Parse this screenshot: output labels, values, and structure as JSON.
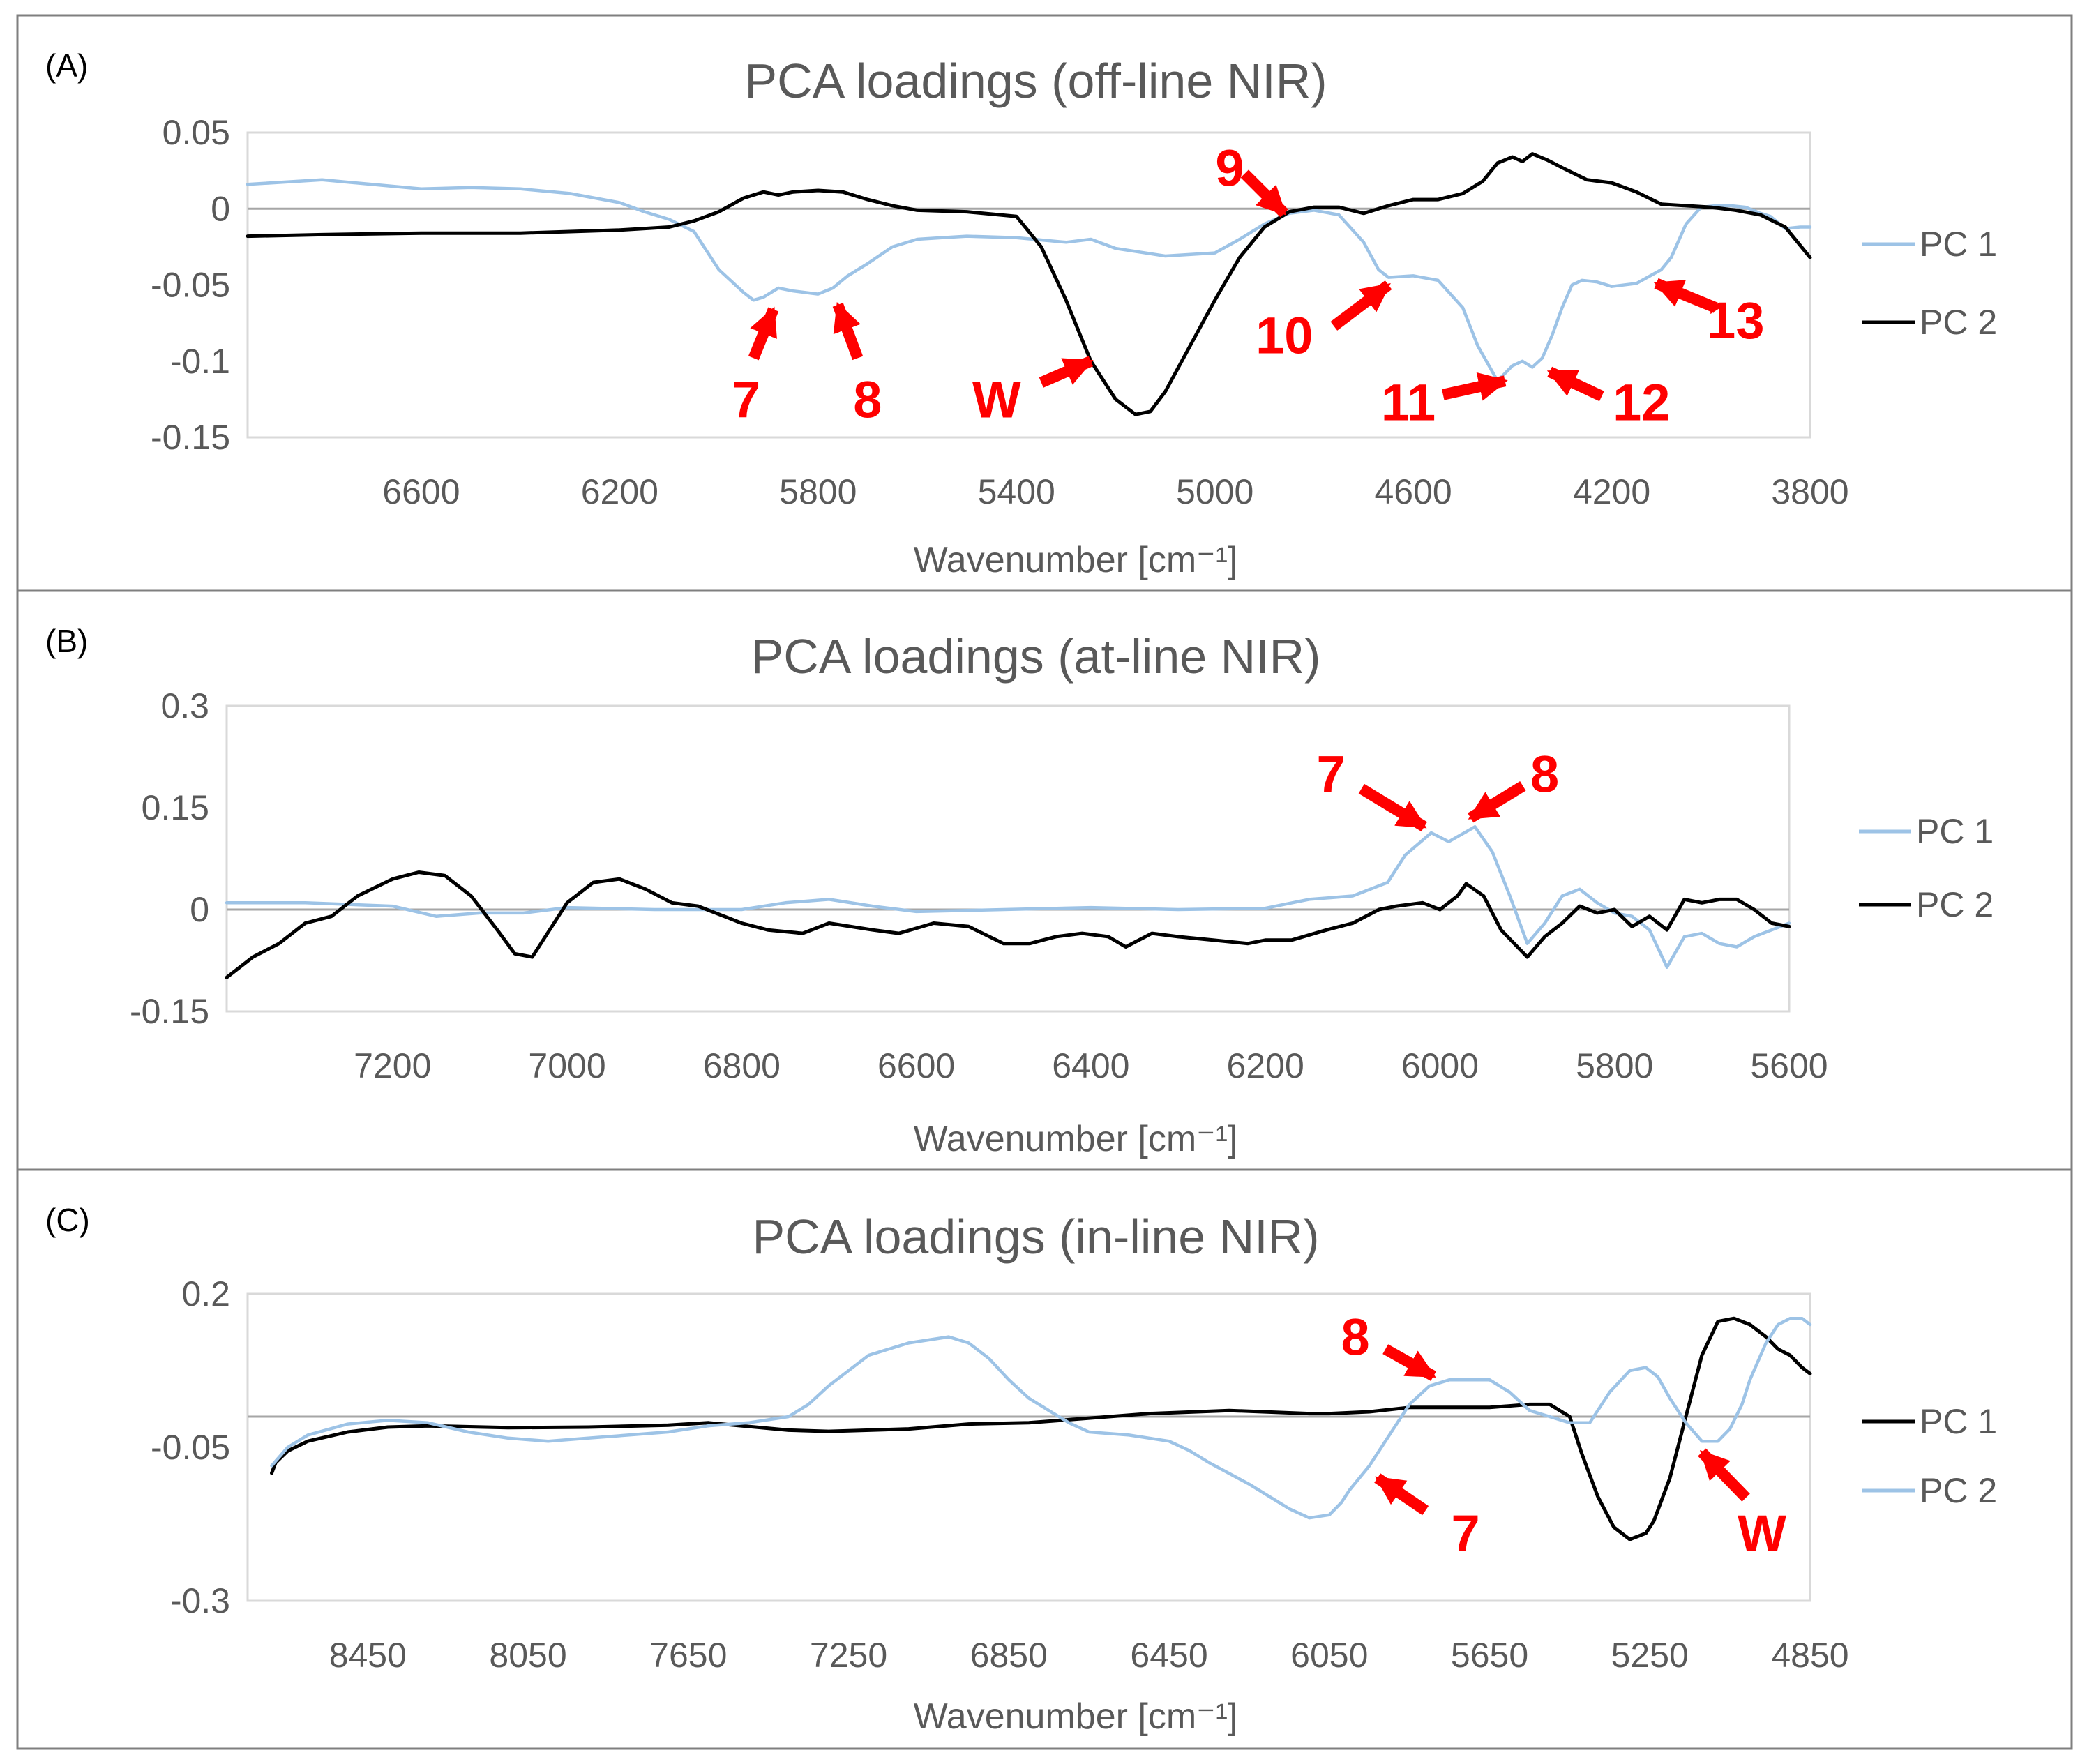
{
  "colors": {
    "pc_light": "#9dc3e6",
    "pc_dark": "#000000",
    "annotation": "#ff0000",
    "text": "#595959"
  },
  "chart_data": [
    {
      "panel_label": "(A)",
      "type": "line",
      "title": "PCA loadings (off-line NIR)",
      "xlabel": "Wavenumber [cm⁻¹]",
      "ylabel": "",
      "xlim": [
        6950,
        3800
      ],
      "x_reversed": true,
      "ylim": [
        -0.15,
        0.05
      ],
      "xticks": [
        6600,
        6200,
        5800,
        5400,
        5000,
        4600,
        4200,
        3800
      ],
      "xtick_labels": [
        "6600",
        "6200",
        "5800",
        "5400",
        "5000",
        "4600",
        "4200",
        "3800"
      ],
      "yticks": [
        0.05,
        0,
        -0.05,
        -0.1,
        -0.15
      ],
      "ytick_labels": [
        "0.05",
        "0",
        "-0.05",
        "-0.1",
        "-0.15"
      ],
      "legend": "right",
      "series": [
        {
          "name": "PC 1",
          "color": "#9dc3e6",
          "x": [
            6950,
            6800,
            6700,
            6600,
            6500,
            6400,
            6300,
            6200,
            6150,
            6100,
            6050,
            6000,
            5950,
            5930,
            5910,
            5880,
            5850,
            5800,
            5770,
            5740,
            5700,
            5650,
            5600,
            5550,
            5500,
            5400,
            5300,
            5250,
            5200,
            5100,
            5000,
            4950,
            4900,
            4850,
            4800,
            4750,
            4700,
            4670,
            4650,
            4600,
            4550,
            4500,
            4470,
            4430,
            4400,
            4380,
            4360,
            4340,
            4320,
            4300,
            4280,
            4260,
            4230,
            4200,
            4150,
            4100,
            4080,
            4050,
            4020,
            3990,
            3960,
            3930,
            3900,
            3880,
            3850,
            3820,
            3800
          ],
          "y": [
            0.016,
            0.019,
            0.016,
            0.013,
            0.014,
            0.013,
            0.01,
            0.004,
            -0.002,
            -0.007,
            -0.015,
            -0.04,
            -0.055,
            -0.06,
            -0.058,
            -0.052,
            -0.054,
            -0.056,
            -0.052,
            -0.044,
            -0.036,
            -0.025,
            -0.02,
            -0.019,
            -0.018,
            -0.019,
            -0.022,
            -0.02,
            -0.026,
            -0.031,
            -0.029,
            -0.02,
            -0.01,
            -0.003,
            -0.001,
            -0.004,
            -0.022,
            -0.04,
            -0.045,
            -0.044,
            -0.047,
            -0.065,
            -0.09,
            -0.113,
            -0.103,
            -0.1,
            -0.104,
            -0.098,
            -0.083,
            -0.065,
            -0.05,
            -0.047,
            -0.048,
            -0.051,
            -0.049,
            -0.04,
            -0.032,
            -0.01,
            0.001,
            0.002,
            0.002,
            0.001,
            -0.003,
            -0.005,
            -0.013,
            -0.012,
            -0.012
          ]
        },
        {
          "name": "PC 2",
          "color": "#000000",
          "x": [
            6950,
            6800,
            6600,
            6400,
            6200,
            6100,
            6050,
            6000,
            5950,
            5910,
            5880,
            5850,
            5800,
            5750,
            5700,
            5650,
            5600,
            5500,
            5400,
            5350,
            5300,
            5250,
            5200,
            5160,
            5130,
            5100,
            5050,
            5000,
            4950,
            4900,
            4850,
            4800,
            4750,
            4700,
            4650,
            4600,
            4550,
            4500,
            4460,
            4430,
            4400,
            4380,
            4360,
            4330,
            4300,
            4250,
            4200,
            4150,
            4100,
            4050,
            4000,
            3950,
            3900,
            3850,
            3800
          ],
          "y": [
            -0.018,
            -0.017,
            -0.016,
            -0.016,
            -0.014,
            -0.012,
            -0.008,
            -0.002,
            0.007,
            0.011,
            0.009,
            0.011,
            0.012,
            0.011,
            0.006,
            0.002,
            -0.001,
            -0.002,
            -0.005,
            -0.025,
            -0.06,
            -0.1,
            -0.125,
            -0.135,
            -0.133,
            -0.12,
            -0.09,
            -0.06,
            -0.032,
            -0.012,
            -0.002,
            0.001,
            0.001,
            -0.003,
            0.002,
            0.006,
            0.006,
            0.01,
            0.018,
            0.03,
            0.034,
            0.031,
            0.036,
            0.032,
            0.027,
            0.019,
            0.017,
            0.011,
            0.003,
            0.002,
            0.001,
            -0.001,
            -0.004,
            -0.012,
            -0.032
          ]
        }
      ],
      "annotations": [
        {
          "label": "7",
          "tip_x": 5890,
          "tip_y": -0.066,
          "text_x": 5945,
          "text_y": -0.125,
          "tail_x": 5930,
          "tail_y": -0.098
        },
        {
          "label": "8",
          "tip_x": 5760,
          "tip_y": -0.063,
          "text_x": 5700,
          "text_y": -0.125,
          "tail_x": 5720,
          "tail_y": -0.098
        },
        {
          "label": "W",
          "tip_x": 5250,
          "tip_y": -0.1,
          "text_x": 5440,
          "text_y": -0.125,
          "tail_x": 5350,
          "tail_y": -0.114
        },
        {
          "label": "9",
          "tip_x": 4860,
          "tip_y": -0.003,
          "text_x": 4970,
          "text_y": 0.027,
          "tail_x": 4940,
          "tail_y": 0.023
        },
        {
          "label": "10",
          "tip_x": 4650,
          "tip_y": -0.05,
          "text_x": 4860,
          "text_y": -0.083,
          "tail_x": 4760,
          "tail_y": -0.077
        },
        {
          "label": "11",
          "tip_x": 4415,
          "tip_y": -0.113,
          "text_x": 4610,
          "text_y": -0.127,
          "tail_x": 4540,
          "tail_y": -0.122
        },
        {
          "label": "12",
          "tip_x": 4325,
          "tip_y": -0.107,
          "text_x": 4140,
          "text_y": -0.127,
          "tail_x": 4220,
          "tail_y": -0.123
        },
        {
          "label": "13",
          "tip_x": 4110,
          "tip_y": -0.049,
          "text_x": 3950,
          "text_y": -0.073,
          "tail_x": 3990,
          "tail_y": -0.065
        }
      ]
    },
    {
      "panel_label": "(B)",
      "type": "line",
      "title": "PCA loadings (at-line NIR)",
      "xlabel": "Wavenumber [cm⁻¹]",
      "ylabel": "",
      "xlim": [
        7390,
        5600
      ],
      "x_reversed": true,
      "ylim": [
        -0.15,
        0.3
      ],
      "xticks": [
        7200,
        7000,
        6800,
        6600,
        6400,
        6200,
        6000,
        5800,
        5600
      ],
      "xtick_labels": [
        "7200",
        "7000",
        "6800",
        "6600",
        "6400",
        "6200",
        "6000",
        "5800",
        "5600"
      ],
      "yticks": [
        0.3,
        0.15,
        0,
        -0.15
      ],
      "ytick_labels": [
        "0.3",
        "0.15",
        "0",
        "-0.15"
      ],
      "legend": "right",
      "series": [
        {
          "name": "PC 1",
          "color": "#9dc3e6",
          "x": [
            7390,
            7300,
            7200,
            7150,
            7100,
            7050,
            7000,
            6900,
            6800,
            6750,
            6700,
            6650,
            6600,
            6500,
            6400,
            6300,
            6200,
            6150,
            6100,
            6060,
            6040,
            6010,
            5990,
            5960,
            5940,
            5920,
            5900,
            5880,
            5860,
            5840,
            5820,
            5800,
            5780,
            5760,
            5740,
            5720,
            5700,
            5680,
            5660,
            5640,
            5620,
            5600
          ],
          "y": [
            0.01,
            0.01,
            0.005,
            -0.01,
            -0.005,
            -0.005,
            0.003,
            0.0,
            0.0,
            0.01,
            0.015,
            0.005,
            -0.003,
            0.0,
            0.003,
            0.0,
            0.002,
            0.015,
            0.02,
            0.04,
            0.08,
            0.113,
            0.1,
            0.122,
            0.085,
            0.02,
            -0.05,
            -0.02,
            0.02,
            0.03,
            0.01,
            -0.005,
            -0.01,
            -0.03,
            -0.085,
            -0.04,
            -0.035,
            -0.05,
            -0.055,
            -0.04,
            -0.03,
            -0.02
          ]
        },
        {
          "name": "PC 2",
          "color": "#000000",
          "x": [
            7390,
            7360,
            7330,
            7300,
            7270,
            7240,
            7200,
            7170,
            7140,
            7110,
            7080,
            7060,
            7040,
            7020,
            7000,
            6970,
            6940,
            6910,
            6880,
            6850,
            6820,
            6800,
            6770,
            6730,
            6700,
            6650,
            6620,
            6580,
            6540,
            6500,
            6470,
            6440,
            6410,
            6380,
            6360,
            6330,
            6300,
            6260,
            6220,
            6200,
            6170,
            6130,
            6100,
            6070,
            6050,
            6020,
            6000,
            5980,
            5970,
            5950,
            5930,
            5900,
            5880,
            5860,
            5840,
            5820,
            5800,
            5780,
            5760,
            5740,
            5720,
            5700,
            5680,
            5660,
            5640,
            5620,
            5600
          ],
          "y": [
            -0.1,
            -0.07,
            -0.05,
            -0.02,
            -0.01,
            0.02,
            0.045,
            0.055,
            0.05,
            0.02,
            -0.03,
            -0.065,
            -0.07,
            -0.03,
            0.01,
            0.04,
            0.045,
            0.03,
            0.01,
            0.005,
            -0.01,
            -0.02,
            -0.03,
            -0.035,
            -0.02,
            -0.03,
            -0.035,
            -0.02,
            -0.025,
            -0.05,
            -0.05,
            -0.04,
            -0.035,
            -0.04,
            -0.055,
            -0.035,
            -0.04,
            -0.045,
            -0.05,
            -0.045,
            -0.045,
            -0.03,
            -0.02,
            0.0,
            0.005,
            0.01,
            0.0,
            0.02,
            0.038,
            0.02,
            -0.03,
            -0.07,
            -0.04,
            -0.02,
            0.005,
            -0.005,
            0.0,
            -0.025,
            -0.01,
            -0.03,
            0.015,
            0.01,
            0.015,
            0.015,
            0.0,
            -0.02,
            -0.025
          ]
        }
      ],
      "annotations": [
        {
          "label": "7",
          "tip_x": 6018,
          "tip_y": 0.122,
          "text_x": 6125,
          "text_y": 0.2,
          "tail_x": 6090,
          "tail_y": 0.178
        },
        {
          "label": "8",
          "tip_x": 5965,
          "tip_y": 0.135,
          "text_x": 5880,
          "text_y": 0.2,
          "tail_x": 5905,
          "tail_y": 0.182
        }
      ]
    },
    {
      "panel_label": "(C)",
      "type": "line",
      "title": "PCA loadings (in-line NIR)",
      "xlabel": "Wavenumber [cm⁻¹]",
      "ylabel": "",
      "xlim": [
        8750,
        4850
      ],
      "x_reversed": true,
      "ylim": [
        -0.3,
        0.2
      ],
      "xticks": [
        8450,
        8050,
        7650,
        7250,
        6850,
        6450,
        6050,
        5650,
        5250,
        4850
      ],
      "xtick_labels": [
        "8450",
        "8050",
        "7650",
        "7250",
        "6850",
        "6450",
        "6050",
        "5650",
        "5250",
        "4850"
      ],
      "yticks": [
        0.2,
        -0.05,
        -0.3
      ],
      "ytick_labels": [
        "0.2",
        "-0.05",
        "-0.3"
      ],
      "legend": "right",
      "series": [
        {
          "name": "PC 1",
          "color": "#000000",
          "x": [
            8690,
            8680,
            8650,
            8600,
            8500,
            8400,
            8300,
            8100,
            7900,
            7700,
            7600,
            7400,
            7300,
            7100,
            6950,
            6800,
            6700,
            6500,
            6300,
            6100,
            6050,
            5950,
            5850,
            5750,
            5650,
            5550,
            5500,
            5450,
            5420,
            5380,
            5340,
            5300,
            5260,
            5240,
            5200,
            5160,
            5120,
            5080,
            5040,
            5000,
            4960,
            4930,
            4900,
            4870,
            4850
          ],
          "y": [
            -0.092,
            -0.075,
            -0.056,
            -0.04,
            -0.025,
            -0.017,
            -0.015,
            -0.018,
            -0.017,
            -0.014,
            -0.01,
            -0.022,
            -0.024,
            -0.02,
            -0.012,
            -0.01,
            -0.005,
            0.005,
            0.01,
            0.005,
            0.005,
            0.008,
            0.015,
            0.015,
            0.015,
            0.02,
            0.02,
            0.0,
            -0.06,
            -0.13,
            -0.18,
            -0.2,
            -0.19,
            -0.17,
            -0.1,
            0.0,
            0.1,
            0.155,
            0.16,
            0.15,
            0.13,
            0.11,
            0.1,
            0.08,
            0.07
          ]
        },
        {
          "name": "PC 2",
          "color": "#9dc3e6",
          "x": [
            8690,
            8650,
            8600,
            8500,
            8400,
            8300,
            8200,
            8100,
            8000,
            7900,
            7800,
            7700,
            7600,
            7500,
            7400,
            7350,
            7300,
            7200,
            7100,
            7000,
            6950,
            6900,
            6850,
            6800,
            6750,
            6700,
            6650,
            6550,
            6450,
            6400,
            6350,
            6250,
            6150,
            6100,
            6050,
            6020,
            6000,
            5950,
            5900,
            5850,
            5800,
            5750,
            5700,
            5650,
            5600,
            5550,
            5500,
            5450,
            5400,
            5350,
            5300,
            5260,
            5230,
            5200,
            5160,
            5120,
            5080,
            5050,
            5020,
            5000,
            4960,
            4930,
            4900,
            4870,
            4850
          ],
          "y": [
            -0.08,
            -0.05,
            -0.03,
            -0.012,
            -0.006,
            -0.01,
            -0.025,
            -0.035,
            -0.04,
            -0.035,
            -0.03,
            -0.025,
            -0.015,
            -0.01,
            0.0,
            0.02,
            0.05,
            0.1,
            0.12,
            0.13,
            0.12,
            0.095,
            0.06,
            0.03,
            0.01,
            -0.01,
            -0.025,
            -0.03,
            -0.04,
            -0.055,
            -0.075,
            -0.11,
            -0.15,
            -0.165,
            -0.16,
            -0.14,
            -0.12,
            -0.08,
            -0.03,
            0.02,
            0.05,
            0.06,
            0.06,
            0.06,
            0.04,
            0.01,
            0.0,
            -0.01,
            -0.01,
            0.04,
            0.075,
            0.08,
            0.065,
            0.03,
            -0.01,
            -0.04,
            -0.04,
            -0.02,
            0.02,
            0.06,
            0.12,
            0.15,
            0.16,
            0.16,
            0.15
          ]
        }
      ],
      "annotations": [
        {
          "label": "8",
          "tip_x": 5790,
          "tip_y": 0.066,
          "text_x": 5985,
          "text_y": 0.13,
          "tail_x": 5910,
          "tail_y": 0.11
        },
        {
          "label": "7",
          "tip_x": 5930,
          "tip_y": -0.1,
          "text_x": 5710,
          "text_y": -0.19,
          "tail_x": 5810,
          "tail_y": -0.153
        },
        {
          "label": "W",
          "tip_x": 5120,
          "tip_y": -0.058,
          "text_x": 4970,
          "text_y": -0.19,
          "tail_x": 5010,
          "tail_y": -0.132
        }
      ]
    }
  ]
}
